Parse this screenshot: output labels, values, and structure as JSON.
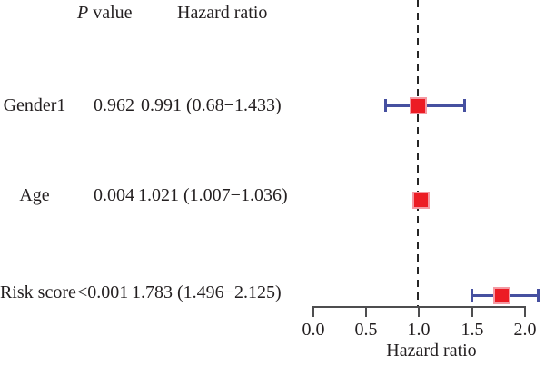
{
  "header": {
    "p_label_italic": "P",
    "p_label_rest": " value",
    "hr_label": "Hazard ratio"
  },
  "chart_data": {
    "type": "forest",
    "rows": [
      {
        "label": "Gender1",
        "p": "0.962",
        "hr_text": "0.991 (0.68−1.433)",
        "hr": 0.991,
        "ci_low": 0.68,
        "ci_high": 1.433
      },
      {
        "label": "Age",
        "p": "0.004",
        "hr_text": "1.021 (1.007−1.036)",
        "hr": 1.021,
        "ci_low": 1.007,
        "ci_high": 1.036
      },
      {
        "label": "Risk score",
        "p": "<0.001",
        "hr_text": "1.783 (1.496−2.125)",
        "hr": 1.783,
        "ci_low": 1.496,
        "ci_high": 2.125
      }
    ],
    "x_axis": {
      "label": "Hazard ratio",
      "ticks": [
        "0.0",
        "0.5",
        "1.0",
        "1.5",
        "2.0"
      ],
      "tick_values": [
        0,
        0.5,
        1.0,
        1.5,
        2.0
      ],
      "range": [
        0,
        2
      ],
      "reference_line": 1.0
    },
    "colors": {
      "marker_fill": "#ec1c24",
      "marker_border": "#f49aa3",
      "ci_line": "#4650a0",
      "axis": "#4d4d4f",
      "reference_dash": "#262626",
      "text": "#231f20"
    }
  }
}
